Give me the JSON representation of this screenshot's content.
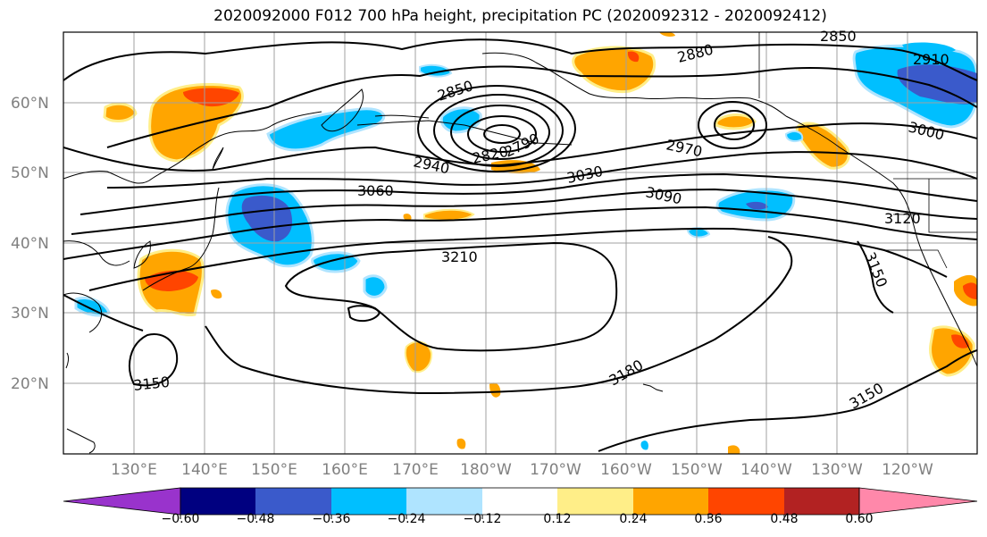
{
  "title": "2020092000 F012 700 hPa height, precipitation PC (2020092312 - 2020092412)",
  "map": {
    "lat_labels": [
      "60°N",
      "50°N",
      "40°N",
      "30°N",
      "20°N"
    ],
    "lon_labels": [
      "130°E",
      "140°E",
      "150°E",
      "160°E",
      "170°E",
      "180°W",
      "170°W",
      "160°W",
      "150°W",
      "140°W",
      "130°W",
      "120°W"
    ],
    "contour_labels": [
      "2880",
      "2910",
      "2850",
      "2850",
      "3000",
      "2970",
      "2940",
      "2820",
      "2790",
      "3030",
      "3060",
      "3090",
      "3120",
      "3210",
      "3150",
      "3150",
      "3180",
      "3150"
    ]
  },
  "colorbar": {
    "colors": [
      "#9933cc",
      "#000080",
      "#3a5acb",
      "#00bfff",
      "#afe4ff",
      "#ffffff",
      "#ffee88",
      "#ffa500",
      "#ff4500",
      "#b22222",
      "#ff88aa"
    ],
    "ticks": [
      "−0.60",
      "−0.48",
      "−0.36",
      "−0.24",
      "−0.12",
      "0.12",
      "0.24",
      "0.36",
      "0.48",
      "0.60"
    ]
  },
  "legend_colors": {
    "contour": "#000000",
    "gridline": "#a0a0a0",
    "coast": "#000000"
  }
}
